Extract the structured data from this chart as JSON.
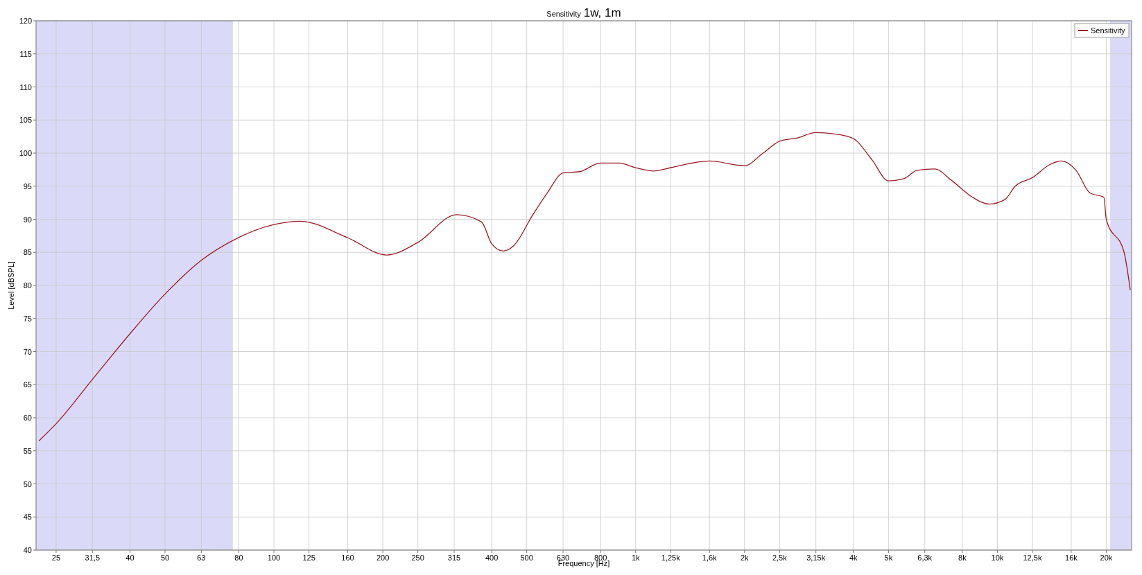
{
  "chart_data": {
    "type": "line",
    "title": "Sensitivity",
    "subtitle": "1w, 1m",
    "xlabel": "Frequency [Hz]",
    "ylabel": "Level [dBSPL]",
    "log": "x",
    "xlim": [
      22,
      23500
    ],
    "ylim": [
      40,
      120
    ],
    "xticks": [
      25,
      {
        "value": 31.5,
        "label": "31,5"
      },
      40,
      50,
      63,
      80,
      100,
      125,
      160,
      200,
      250,
      315,
      400,
      500,
      630,
      800,
      {
        "value": 1000,
        "label": "1k"
      },
      {
        "value": 1250,
        "label": "1,25k"
      },
      {
        "value": 1600,
        "label": "1,6k"
      },
      {
        "value": 2000,
        "label": "2k"
      },
      {
        "value": 2500,
        "label": "2,5k"
      },
      {
        "value": 3150,
        "label": "3,15k"
      },
      {
        "value": 4000,
        "label": "4k"
      },
      {
        "value": 5000,
        "label": "5k"
      },
      {
        "value": 6300,
        "label": "6,3k"
      },
      {
        "value": 8000,
        "label": "8k"
      },
      {
        "value": 10000,
        "label": "10k"
      },
      {
        "value": 12500,
        "label": "12,5k"
      },
      {
        "value": 16000,
        "label": "16k"
      },
      {
        "value": 20000,
        "label": "20k"
      }
    ],
    "yticks": [
      40,
      45,
      50,
      55,
      60,
      65,
      70,
      75,
      80,
      85,
      90,
      95,
      100,
      105,
      110,
      115,
      120
    ],
    "grid": true,
    "legend": "top right",
    "line_style": "solid",
    "bands": [
      {
        "axis": "x",
        "from": 22,
        "to": 77,
        "color": "#dadaf8"
      },
      {
        "axis": "x",
        "from": 20500,
        "to": 23500,
        "color": "#dadaf8"
      }
    ],
    "series": [
      {
        "name": "Sensitivity",
        "color": "#9b1b24",
        "x": [
          22.4,
          25,
          31.5,
          40,
          50,
          63,
          77,
          100,
          118,
          160,
          205,
          250,
          320,
          375,
          400,
          430,
          460,
          520,
          570,
          630,
          700,
          800,
          900,
          1000,
          1120,
          1250,
          1400,
          1600,
          2000,
          2250,
          2500,
          2800,
          3150,
          3550,
          4000,
          4500,
          5000,
          5500,
          6000,
          6700,
          7500,
          8500,
          9500,
          10500,
          11200,
          12500,
          14000,
          15000,
          16500,
          18000,
          19700,
          20000,
          22400,
          23300
        ],
        "values": [
          56.5,
          59.1,
          65.8,
          72.7,
          78.7,
          83.8,
          86.8,
          89.2,
          89.7,
          87.2,
          84.6,
          86.5,
          90.7,
          89.6,
          86.3,
          85.2,
          86,
          90.7,
          94,
          97,
          97.2,
          98.5,
          98.5,
          97.8,
          97.3,
          97.8,
          98.4,
          98.8,
          98.1,
          100,
          101.8,
          102.3,
          103.1,
          102.9,
          102.2,
          99,
          95.8,
          96.1,
          97.4,
          97.6,
          95.8,
          93.4,
          92.3,
          93,
          95,
          96.3,
          98.3,
          98.8,
          97.4,
          94,
          93.3,
          90,
          85,
          79.3
        ]
      }
    ]
  }
}
